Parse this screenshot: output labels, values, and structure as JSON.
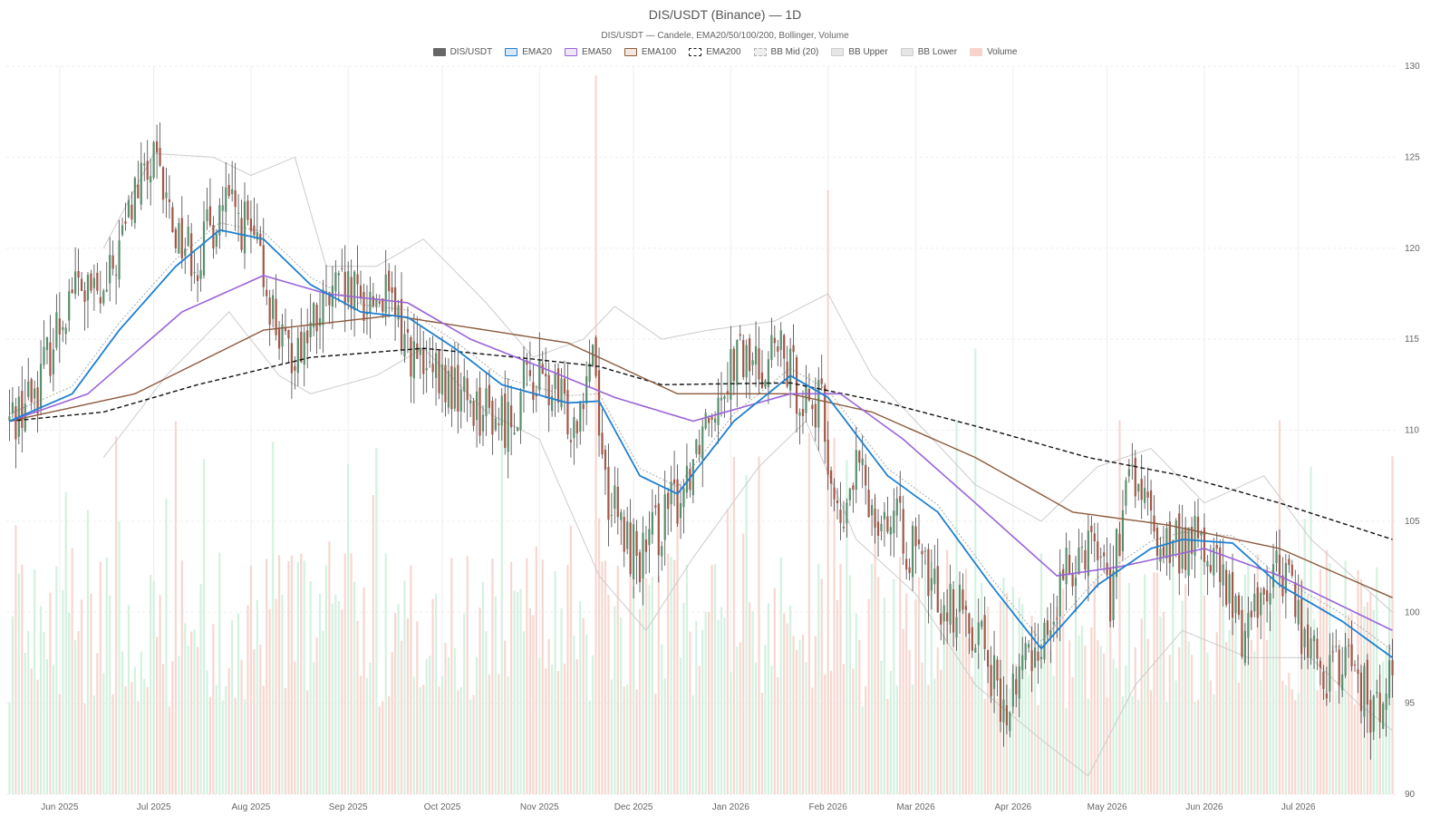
{
  "header": {
    "title": "DIS/USDT (Binance) — 1D",
    "subtitle": "DIS/USDT — Candele, EMA20/50/100/200, Bollinger, Volume"
  },
  "legend": [
    {
      "label": "DIS/USDT",
      "fill": "#666666",
      "border": "#666666",
      "dash": false
    },
    {
      "label": "EMA20",
      "fill": "#d6e8f7",
      "border": "#1f7fd1",
      "dash": false
    },
    {
      "label": "EMA50",
      "fill": "#efe6fa",
      "border": "#9a63d8",
      "dash": false
    },
    {
      "label": "EMA100",
      "fill": "#f3e6dc",
      "border": "#8b5a3c",
      "dash": false
    },
    {
      "label": "EMA200",
      "fill": "#ffffff",
      "border": "#111111",
      "dash": true
    },
    {
      "label": "BB Mid (20)",
      "fill": "#eeeeee",
      "border": "#aaaaaa",
      "dash": true
    },
    {
      "label": "BB Upper",
      "fill": "#e6e6e6",
      "border": "#cccccc",
      "dash": false
    },
    {
      "label": "BB Lower",
      "fill": "#e6e6e6",
      "border": "#cccccc",
      "dash": false
    },
    {
      "label": "Volume",
      "fill": "#f8d3cc",
      "border": "#f8d3cc",
      "dash": false
    }
  ],
  "chart_data": {
    "type": "candlestick",
    "title": "DIS/USDT (Binance) — 1D",
    "subtitle": "DIS/USDT — Candele, EMA20/50/100/200, Bollinger, Volume",
    "ylim": [
      90,
      130
    ],
    "y_ticks": [
      90,
      95,
      100,
      105,
      110,
      115,
      120,
      125,
      130
    ],
    "x_range": [
      "2025-05-15",
      "2026-08-01"
    ],
    "x_ticks": [
      {
        "date": "2025-06-01",
        "label": "Jun 2025"
      },
      {
        "date": "2025-07-01",
        "label": "Jul 2025"
      },
      {
        "date": "2025-08-01",
        "label": "Aug 2025"
      },
      {
        "date": "2025-09-01",
        "label": "Sep 2025"
      },
      {
        "date": "2025-10-01",
        "label": "Oct 2025"
      },
      {
        "date": "2025-11-01",
        "label": "Nov 2025"
      },
      {
        "date": "2025-12-01",
        "label": "Dec 2025"
      },
      {
        "date": "2026-01-01",
        "label": "Jan 2026"
      },
      {
        "date": "2026-02-01",
        "label": "Feb 2026"
      },
      {
        "date": "2026-03-01",
        "label": "Mar 2026"
      },
      {
        "date": "2026-04-01",
        "label": "Apr 2026"
      },
      {
        "date": "2026-05-01",
        "label": "May 2026"
      },
      {
        "date": "2026-06-01",
        "label": "Jun 2026"
      },
      {
        "date": "2026-07-01",
        "label": "Jul 2026"
      }
    ],
    "price_keyframes": [
      [
        "2025-05-16",
        110.5
      ],
      [
        "2025-05-25",
        112.5
      ],
      [
        "2025-06-05",
        118
      ],
      [
        "2025-06-15",
        117
      ],
      [
        "2025-06-25",
        123
      ],
      [
        "2025-07-01",
        124.5
      ],
      [
        "2025-07-08",
        121
      ],
      [
        "2025-07-15",
        119.5
      ],
      [
        "2025-07-23",
        122.5
      ],
      [
        "2025-07-31",
        121
      ],
      [
        "2025-08-05",
        118.5
      ],
      [
        "2025-08-12",
        114
      ],
      [
        "2025-08-20",
        115.5
      ],
      [
        "2025-08-28",
        117.5
      ],
      [
        "2025-09-05",
        117
      ],
      [
        "2025-09-12",
        117.5
      ],
      [
        "2025-09-18",
        115.5
      ],
      [
        "2025-09-25",
        113
      ],
      [
        "2025-10-01",
        112.5
      ],
      [
        "2025-10-08",
        112
      ],
      [
        "2025-10-15",
        111
      ],
      [
        "2025-10-22",
        110.5
      ],
      [
        "2025-10-29",
        113
      ],
      [
        "2025-11-05",
        112
      ],
      [
        "2025-11-12",
        110.5
      ],
      [
        "2025-11-18",
        115
      ],
      [
        "2025-11-22",
        107
      ],
      [
        "2025-11-28",
        104
      ],
      [
        "2025-12-04",
        103
      ],
      [
        "2025-12-10",
        105
      ],
      [
        "2025-12-16",
        106.5
      ],
      [
        "2025-12-24",
        111
      ],
      [
        "2026-01-02",
        114
      ],
      [
        "2026-01-10",
        113.5
      ],
      [
        "2026-01-15",
        114.5
      ],
      [
        "2026-01-22",
        112.5
      ],
      [
        "2026-01-30",
        111
      ],
      [
        "2026-02-05",
        104
      ],
      [
        "2026-02-10",
        108
      ],
      [
        "2026-02-15",
        106
      ],
      [
        "2026-02-22",
        105
      ],
      [
        "2026-03-01",
        103
      ],
      [
        "2026-03-08",
        101
      ],
      [
        "2026-03-15",
        100
      ],
      [
        "2026-03-22",
        99
      ],
      [
        "2026-03-29",
        94
      ],
      [
        "2026-04-05",
        97.5
      ],
      [
        "2026-04-12",
        99
      ],
      [
        "2026-04-20",
        103
      ],
      [
        "2026-04-27",
        104.5
      ],
      [
        "2026-05-02",
        101
      ],
      [
        "2026-05-09",
        108
      ],
      [
        "2026-05-16",
        104
      ],
      [
        "2026-05-23",
        103.5
      ],
      [
        "2026-05-30",
        104
      ],
      [
        "2026-06-06",
        102
      ],
      [
        "2026-06-13",
        99
      ],
      [
        "2026-06-20",
        101.5
      ],
      [
        "2026-06-27",
        102.5
      ],
      [
        "2026-07-04",
        98
      ],
      [
        "2026-07-11",
        96.5
      ],
      [
        "2026-07-18",
        97.5
      ],
      [
        "2026-07-25",
        94
      ],
      [
        "2026-07-31",
        97
      ]
    ],
    "ema20_keyframes": [
      [
        "2025-05-16",
        110.5
      ],
      [
        "2025-06-05",
        112
      ],
      [
        "2025-06-20",
        115.5
      ],
      [
        "2025-07-08",
        119
      ],
      [
        "2025-07-22",
        121
      ],
      [
        "2025-08-05",
        120.5
      ],
      [
        "2025-08-20",
        118
      ],
      [
        "2025-09-05",
        116.5
      ],
      [
        "2025-09-20",
        116.2
      ],
      [
        "2025-10-05",
        114.5
      ],
      [
        "2025-10-20",
        112.5
      ],
      [
        "2025-11-10",
        111.5
      ],
      [
        "2025-11-20",
        111.6
      ],
      [
        "2025-12-03",
        107.5
      ],
      [
        "2025-12-15",
        106.5
      ],
      [
        "2026-01-02",
        110.5
      ],
      [
        "2026-01-20",
        113
      ],
      [
        "2026-02-01",
        111.8
      ],
      [
        "2026-02-20",
        107.5
      ],
      [
        "2026-03-08",
        105.5
      ],
      [
        "2026-03-25",
        101.5
      ],
      [
        "2026-04-10",
        98
      ],
      [
        "2026-04-28",
        101.5
      ],
      [
        "2026-05-15",
        103.5
      ],
      [
        "2026-05-25",
        104
      ],
      [
        "2026-06-10",
        103.8
      ],
      [
        "2026-06-25",
        101.5
      ],
      [
        "2026-07-15",
        99.5
      ],
      [
        "2026-07-31",
        97.5
      ]
    ],
    "ema50_keyframes": [
      [
        "2025-05-16",
        110.5
      ],
      [
        "2025-06-10",
        112
      ],
      [
        "2025-07-10",
        116.5
      ],
      [
        "2025-08-05",
        118.5
      ],
      [
        "2025-08-25",
        117.5
      ],
      [
        "2025-09-20",
        117
      ],
      [
        "2025-10-10",
        115
      ],
      [
        "2025-11-01",
        113.5
      ],
      [
        "2025-11-25",
        111.8
      ],
      [
        "2025-12-20",
        110.5
      ],
      [
        "2026-01-20",
        112
      ],
      [
        "2026-02-05",
        112
      ],
      [
        "2026-02-25",
        109.5
      ],
      [
        "2026-03-20",
        106
      ],
      [
        "2026-04-15",
        102
      ],
      [
        "2026-05-05",
        102.5
      ],
      [
        "2026-06-01",
        103.5
      ],
      [
        "2026-06-25",
        102
      ],
      [
        "2026-07-31",
        99
      ]
    ],
    "ema100_keyframes": [
      [
        "2025-05-16",
        110.5
      ],
      [
        "2025-06-25",
        112
      ],
      [
        "2025-08-05",
        115.5
      ],
      [
        "2025-09-15",
        116.3
      ],
      [
        "2025-10-15",
        115.5
      ],
      [
        "2025-11-10",
        114.8
      ],
      [
        "2025-12-15",
        112
      ],
      [
        "2026-01-20",
        112
      ],
      [
        "2026-02-15",
        111
      ],
      [
        "2026-03-20",
        108.5
      ],
      [
        "2026-04-20",
        105.5
      ],
      [
        "2026-05-20",
        104.8
      ],
      [
        "2026-06-25",
        103.5
      ],
      [
        "2026-07-31",
        100.8
      ]
    ],
    "ema200_keyframes": [
      [
        "2025-05-16",
        110.5
      ],
      [
        "2025-06-15",
        111
      ],
      [
        "2025-07-15",
        112.5
      ],
      [
        "2025-08-20",
        114
      ],
      [
        "2025-09-25",
        114.5
      ],
      [
        "2025-10-25",
        114
      ],
      [
        "2025-11-20",
        113.5
      ],
      [
        "2025-12-10",
        112.5
      ],
      [
        "2026-01-20",
        112.6
      ],
      [
        "2026-02-20",
        111.5
      ],
      [
        "2026-03-25",
        110
      ],
      [
        "2026-04-25",
        108.5
      ],
      [
        "2026-05-25",
        107.5
      ],
      [
        "2026-06-25",
        106
      ],
      [
        "2026-07-31",
        104
      ]
    ],
    "bb_upper_keyframes": [
      [
        "2025-06-15",
        120
      ],
      [
        "2025-07-01",
        125.2
      ],
      [
        "2025-07-20",
        125
      ],
      [
        "2025-08-01",
        124
      ],
      [
        "2025-08-15",
        125
      ],
      [
        "2025-08-25",
        119
      ],
      [
        "2025-09-10",
        119
      ],
      [
        "2025-09-25",
        120.5
      ],
      [
        "2025-10-15",
        117
      ],
      [
        "2025-10-30",
        114
      ],
      [
        "2025-11-15",
        115
      ],
      [
        "2025-11-25",
        116.8
      ],
      [
        "2025-12-10",
        115
      ],
      [
        "2025-12-25",
        115.5
      ],
      [
        "2026-01-15",
        116
      ],
      [
        "2026-02-01",
        117.5
      ],
      [
        "2026-02-15",
        113
      ],
      [
        "2026-03-01",
        110.5
      ],
      [
        "2026-03-20",
        107
      ],
      [
        "2026-04-10",
        105
      ],
      [
        "2026-04-28",
        108
      ],
      [
        "2026-05-15",
        109
      ],
      [
        "2026-06-01",
        106
      ],
      [
        "2026-06-20",
        107.5
      ],
      [
        "2026-07-05",
        104
      ],
      [
        "2026-07-31",
        100
      ]
    ],
    "bb_lower_keyframes": [
      [
        "2025-06-15",
        108.5
      ],
      [
        "2025-07-05",
        113
      ],
      [
        "2025-07-25",
        116.5
      ],
      [
        "2025-08-10",
        113
      ],
      [
        "2025-08-20",
        112
      ],
      [
        "2025-09-10",
        113
      ],
      [
        "2025-09-25",
        114.5
      ],
      [
        "2025-10-15",
        111
      ],
      [
        "2025-11-01",
        109.5
      ],
      [
        "2025-11-20",
        102
      ],
      [
        "2025-12-05",
        99
      ],
      [
        "2025-12-20",
        103
      ],
      [
        "2026-01-10",
        108
      ],
      [
        "2026-01-25",
        110.5
      ],
      [
        "2026-02-10",
        104
      ],
      [
        "2026-03-01",
        101
      ],
      [
        "2026-03-20",
        96
      ],
      [
        "2026-04-10",
        93
      ],
      [
        "2026-04-25",
        91
      ],
      [
        "2026-05-10",
        96
      ],
      [
        "2026-05-25",
        99
      ],
      [
        "2026-06-15",
        97.5
      ],
      [
        "2026-07-05",
        97.5
      ],
      [
        "2026-07-20",
        95
      ],
      [
        "2026-07-31",
        93.5
      ]
    ],
    "volume_spikes": [
      [
        "2025-11-19",
        1.0
      ],
      [
        "2026-02-01",
        0.84
      ],
      [
        "2025-10-20",
        0.52
      ],
      [
        "2025-08-08",
        0.49
      ],
      [
        "2026-03-20",
        0.62
      ],
      [
        "2026-05-05",
        0.52
      ],
      [
        "2026-06-25",
        0.52
      ],
      [
        "2026-07-31",
        0.47
      ],
      [
        "2025-06-03",
        0.42
      ],
      [
        "2025-06-20",
        0.38
      ]
    ],
    "colors": {
      "up": "#5a8f6e",
      "down": "#a05848",
      "vol_up": "#cdeedb",
      "vol_down": "#f6d0c8",
      "ema20": "#1f7fd1",
      "ema50": "#9a63d8",
      "ema100": "#8b5a3c",
      "ema200": "#111111",
      "bb": "#cccccc",
      "bb_mid": "#aaaaaa",
      "grid": "#eeeeee"
    }
  }
}
